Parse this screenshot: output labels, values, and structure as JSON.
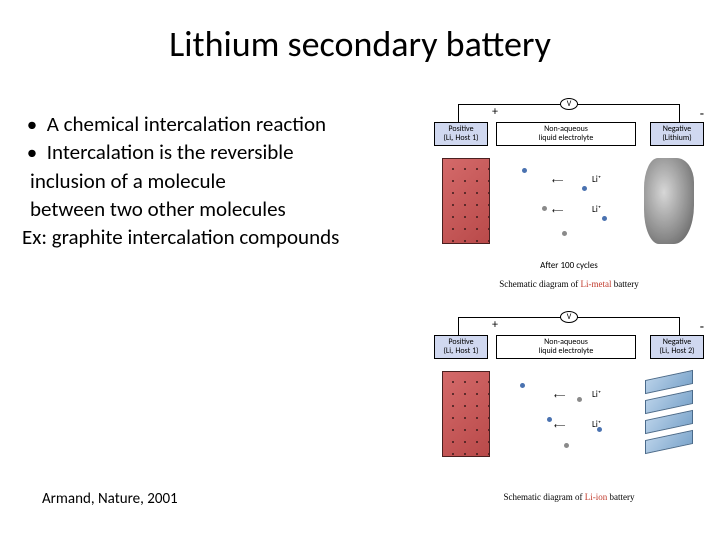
{
  "title": "Lithium secondary battery",
  "bullets": {
    "b1": "A chemical intercalation reaction",
    "b2": "Intercalation is the reversible",
    "l3": "inclusion of a molecule",
    "l4": "between two other molecules",
    "l5": "Ex: graphite intercalation compounds"
  },
  "citation": "Armand, Nature, 2001",
  "diagram1": {
    "voltmeter": "V",
    "plus": "+",
    "minus": "-",
    "positive_label": "Positive\n(Liₓ Host 1)",
    "mid_label": "Non-aqueous\nliquid electrolyte",
    "negative_label": "Negative\n(Lithium)",
    "li1": "Li⁺",
    "li2": "Li⁺",
    "after_cycles": "After 100 cycles",
    "caption_prefix": "Schematic diagram of ",
    "caption_red": "Li-metal",
    "caption_suffix": " battery",
    "positive_color": "#c05050",
    "negative_color": "#9a9a9a",
    "box_bg_pos": "#d0d8f0",
    "box_bg_neg": "#d0d8f0"
  },
  "diagram2": {
    "voltmeter": "V",
    "plus": "+",
    "minus": "-",
    "positive_label": "Positive\n(Liₓ Host 1)",
    "mid_label": "Non-aqueous\nliquid electrolyte",
    "negative_label": "Negative\n(Liₓ Host 2)",
    "li1": "Li⁺",
    "li2": "Li⁺",
    "caption_prefix": "Schematic diagram of ",
    "caption_red": "Li-ion",
    "caption_suffix": " battery"
  },
  "colors": {
    "text": "#000000",
    "bg": "#ffffff",
    "red_accent": "#c0392b"
  }
}
